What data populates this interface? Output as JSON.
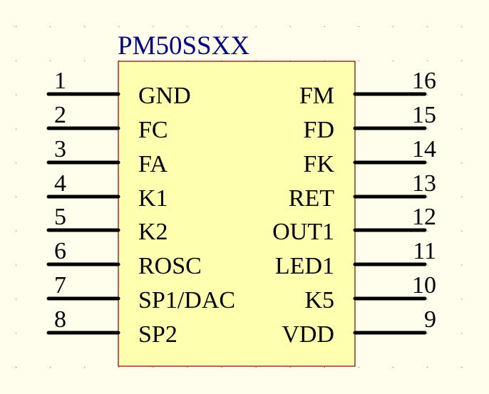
{
  "component": {
    "name": "PM50SSXX",
    "left_pins": [
      {
        "number": "1",
        "label": "GND"
      },
      {
        "number": "2",
        "label": "FC"
      },
      {
        "number": "3",
        "label": "FA"
      },
      {
        "number": "4",
        "label": "K1"
      },
      {
        "number": "5",
        "label": "K2"
      },
      {
        "number": "6",
        "label": "ROSC"
      },
      {
        "number": "7",
        "label": "SP1/DAC"
      },
      {
        "number": "8",
        "label": "SP2"
      }
    ],
    "right_pins": [
      {
        "number": "16",
        "label": "FM"
      },
      {
        "number": "15",
        "label": "FD"
      },
      {
        "number": "14",
        "label": "FK"
      },
      {
        "number": "13",
        "label": "RET"
      },
      {
        "number": "12",
        "label": "OUT1"
      },
      {
        "number": "11",
        "label": "LED1"
      },
      {
        "number": "10",
        "label": "K5"
      },
      {
        "number": "9",
        "label": "VDD"
      }
    ]
  },
  "colors": {
    "background": "#fffeec",
    "grid_dot": "#e03030",
    "body_fill": "#ffffb0",
    "body_border": "#800000",
    "name_text": "#000080",
    "pin": "#000000"
  }
}
